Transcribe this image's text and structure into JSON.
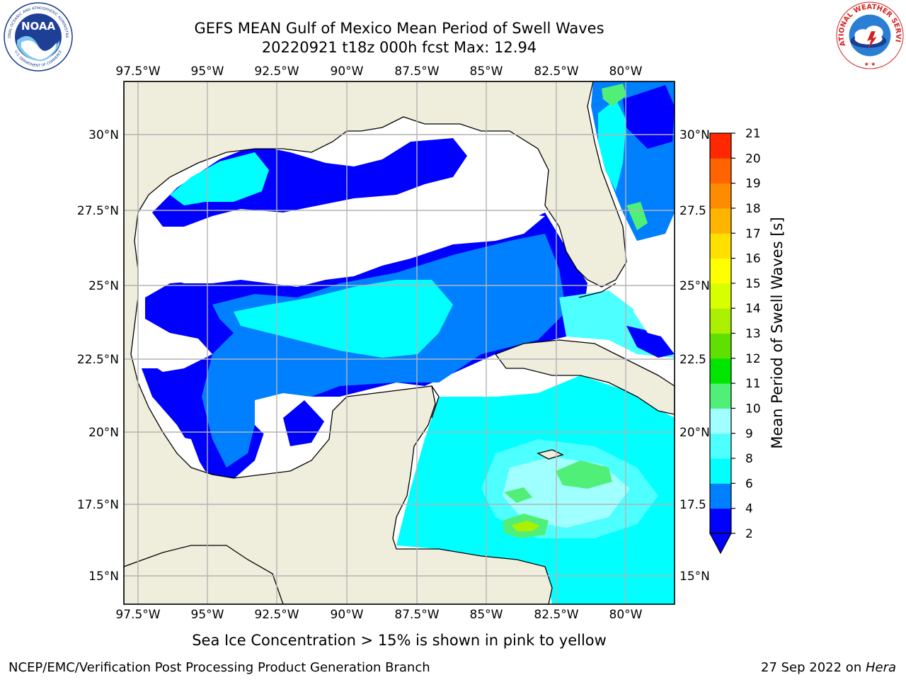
{
  "title_line1": "GEFS MEAN Gulf of Mexico Mean Period of Swell Waves",
  "title_line2": "20220921 t18z 000h fcst   Max: 12.94",
  "caption": "Sea Ice Concentration > 15% is shown in pink to yellow",
  "footer_left": "NCEP/EMC/Verification Post Processing Product Generation Branch",
  "footer_date": "27 Sep 2022 on ",
  "footer_machine": "Hera",
  "noaa_logo": {
    "text": "NOAA",
    "ring_text_top": "NATIONAL OCEANIC AND ATMOSPHERIC ADMINISTRATION",
    "ring_text_bottom": "U.S. DEPARTMENT OF COMMERCE"
  },
  "nws_logo": {
    "ring_text": "NATIONAL WEATHER SERVICE"
  },
  "map": {
    "lon_ticks": [
      "97.5°W",
      "95°W",
      "92.5°W",
      "90°W",
      "87.5°W",
      "85°W",
      "82.5°W",
      "80°W"
    ],
    "lat_ticks_left": [
      "30°N",
      "27.5°N",
      "25°N",
      "22.5°N",
      "20°N",
      "17.5°N",
      "15°N"
    ],
    "lat_ticks_right": [
      "30°N",
      "27.5",
      "25°N",
      "22.5",
      "20°N",
      "17.5",
      "15°N"
    ],
    "land_color": "#efeddb",
    "grid_color": "#b4b4b4"
  },
  "colorbar": {
    "label": "Mean Period of Swell Waves [s]",
    "ticks": [
      "2",
      "4",
      "6",
      "8",
      "9",
      "10",
      "11",
      "12",
      "13",
      "14",
      "15",
      "16",
      "17",
      "18",
      "19",
      "20",
      "21"
    ],
    "colors": [
      "#0000ff",
      "#0080ff",
      "#00ffff",
      "#4dffff",
      "#a0ffff",
      "#50f078",
      "#00e600",
      "#60e000",
      "#aaf000",
      "#d8ff00",
      "#ffff00",
      "#ffe000",
      "#ffb400",
      "#ff8c00",
      "#ff6400",
      "#ff2800"
    ],
    "extend_color": "#0000ff"
  }
}
